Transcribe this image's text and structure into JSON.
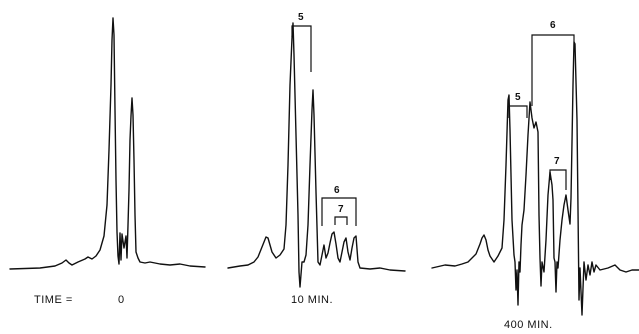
{
  "chart_data": [
    {
      "type": "line",
      "panel_id": "t0",
      "label_prefix": "TIME =",
      "time_label": "0",
      "peaks": [
        {
          "rel_height": 0.05,
          "width": "small"
        },
        {
          "rel_height": 1.0,
          "width": "narrow"
        },
        {
          "rel_height": 0.62,
          "width": "narrow"
        }
      ],
      "brackets": []
    },
    {
      "type": "line",
      "panel_id": "t10",
      "time_label": "10 MIN.",
      "peaks": [
        {
          "rel_height": 0.2
        },
        {
          "rel_height": 1.0
        },
        {
          "rel_height": 0.63
        },
        {
          "rel_height": 0.16
        },
        {
          "rel_height": 0.12
        },
        {
          "rel_height": 0.15
        }
      ],
      "brackets": [
        {
          "label": "5"
        },
        {
          "label": "6"
        },
        {
          "label": "7"
        }
      ]
    },
    {
      "type": "line",
      "panel_id": "t400",
      "time_label": "400 MIN.",
      "peaks": [
        {
          "rel_height": 0.2
        },
        {
          "rel_height": 0.7
        },
        {
          "rel_height": 0.65
        },
        {
          "rel_height": 0.46
        },
        {
          "rel_height": 0.95
        }
      ],
      "brackets": [
        {
          "label": "5"
        },
        {
          "label": "6"
        },
        {
          "label": "7"
        }
      ]
    }
  ]
}
